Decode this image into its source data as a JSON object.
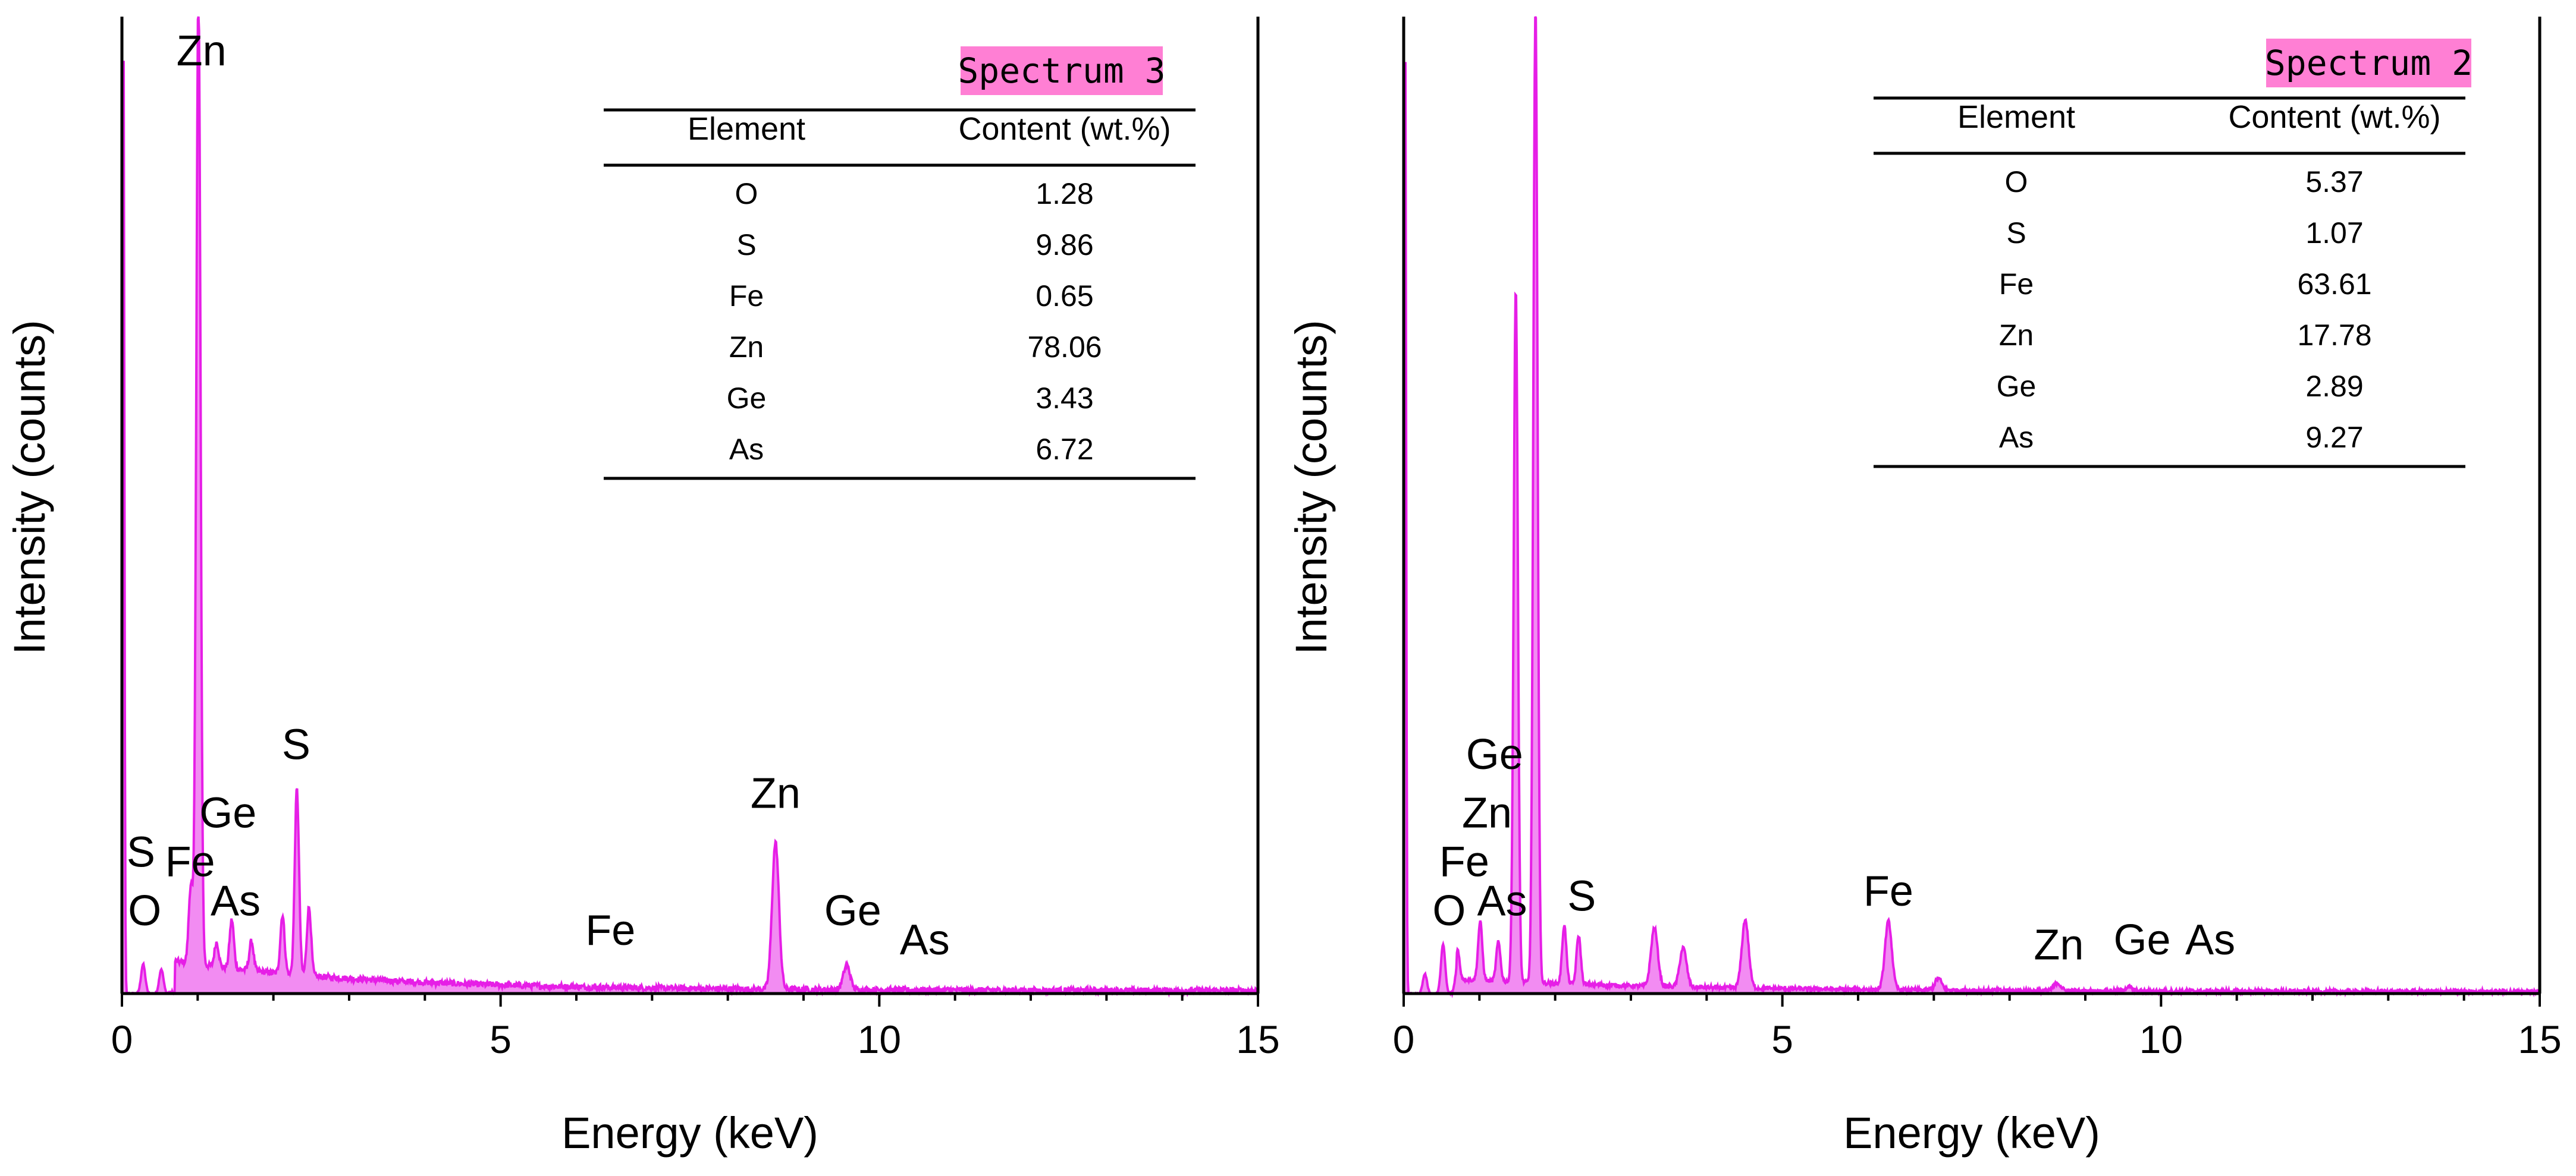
{
  "colors": {
    "spectrum_fill": "#f28cf2",
    "spectrum_stroke": "#e61ee6",
    "title_badge": "#ff7fd4"
  },
  "chart_data": [
    {
      "type": "area",
      "title": "Spectrum 3",
      "xlabel": "Energy (keV)",
      "ylabel": "Intensity (counts)",
      "xlim": [
        0,
        15
      ],
      "x_ticks": [
        "0",
        "5",
        "10",
        "15"
      ],
      "y_scale": "relative (no numeric ticks)",
      "peaks": [
        {
          "energy": 0.02,
          "height": 1.0
        },
        {
          "energy": 0.28,
          "height": 0.03
        },
        {
          "energy": 0.52,
          "height": 0.025
        },
        {
          "energy": 0.91,
          "height": 0.08
        },
        {
          "energy": 1.01,
          "height": 1.0
        },
        {
          "energy": 1.25,
          "height": 0.025
        },
        {
          "energy": 1.45,
          "height": 0.05
        },
        {
          "energy": 1.71,
          "height": 0.03
        },
        {
          "energy": 2.12,
          "height": 0.06
        },
        {
          "energy": 2.31,
          "height": 0.19
        },
        {
          "energy": 2.47,
          "height": 0.07
        },
        {
          "energy": 8.63,
          "height": 0.15
        },
        {
          "energy": 9.57,
          "height": 0.025
        }
      ],
      "peak_labels": [
        {
          "text": "Zn",
          "energy": 1.05,
          "level": 0.95
        },
        {
          "text": "S",
          "energy": 0.25,
          "level": 0.13
        },
        {
          "text": "O",
          "energy": 0.3,
          "level": 0.07
        },
        {
          "text": "Fe",
          "energy": 0.9,
          "level": 0.12
        },
        {
          "text": "Ge",
          "energy": 1.4,
          "level": 0.17
        },
        {
          "text": "As",
          "energy": 1.5,
          "level": 0.08
        },
        {
          "text": "S",
          "energy": 2.3,
          "level": 0.24
        },
        {
          "text": "Fe",
          "energy": 6.45,
          "level": 0.05
        },
        {
          "text": "Zn",
          "energy": 8.63,
          "level": 0.19
        },
        {
          "text": "Ge",
          "energy": 9.65,
          "level": 0.07
        },
        {
          "text": "As",
          "energy": 10.6,
          "level": 0.04
        }
      ],
      "table": {
        "headers": [
          "Element",
          "Content (wt.%)"
        ],
        "rows": [
          [
            "O",
            "1.28"
          ],
          [
            "S",
            "9.86"
          ],
          [
            "Fe",
            "0.65"
          ],
          [
            "Zn",
            "78.06"
          ],
          [
            "Ge",
            "3.43"
          ],
          [
            "As",
            "6.72"
          ]
        ]
      }
    },
    {
      "type": "area",
      "title": "Spectrum 2",
      "xlabel": "Energy (keV)",
      "ylabel": "Intensity (counts)",
      "xlim": [
        0,
        15
      ],
      "x_ticks": [
        "0",
        "5",
        "10",
        "15"
      ],
      "y_scale": "relative (no numeric ticks)",
      "peaks": [
        {
          "energy": 0.02,
          "height": 1.0
        },
        {
          "energy": 0.28,
          "height": 0.02
        },
        {
          "energy": 0.52,
          "height": 0.05
        },
        {
          "energy": 0.71,
          "height": 0.03
        },
        {
          "energy": 1.01,
          "height": 0.06
        },
        {
          "energy": 1.25,
          "height": 0.04
        },
        {
          "energy": 1.48,
          "height": 0.71
        },
        {
          "energy": 1.74,
          "height": 1.0
        },
        {
          "energy": 2.12,
          "height": 0.06
        },
        {
          "energy": 2.31,
          "height": 0.05
        },
        {
          "energy": 3.31,
          "height": 0.06
        },
        {
          "energy": 3.69,
          "height": 0.04
        },
        {
          "energy": 4.51,
          "height": 0.07
        },
        {
          "energy": 6.4,
          "height": 0.07
        },
        {
          "energy": 7.06,
          "height": 0.012
        },
        {
          "energy": 8.63,
          "height": 0.008
        },
        {
          "energy": 9.57,
          "height": 0.004
        }
      ],
      "peak_labels": [
        {
          "text": "Ge",
          "energy": 1.2,
          "level": 0.23
        },
        {
          "text": "Zn",
          "energy": 1.1,
          "level": 0.17
        },
        {
          "text": "Fe",
          "energy": 0.8,
          "level": 0.12
        },
        {
          "text": "O",
          "energy": 0.6,
          "level": 0.07
        },
        {
          "text": "As",
          "energy": 1.3,
          "level": 0.08
        },
        {
          "text": "S",
          "energy": 2.35,
          "level": 0.085
        },
        {
          "text": "Fe",
          "energy": 6.4,
          "level": 0.09
        },
        {
          "text": "Zn",
          "energy": 8.65,
          "level": 0.035
        },
        {
          "text": "Ge",
          "energy": 9.75,
          "level": 0.04
        },
        {
          "text": "As",
          "energy": 10.65,
          "level": 0.04
        }
      ],
      "table": {
        "headers": [
          "Element",
          "Content (wt.%)"
        ],
        "rows": [
          [
            "O",
            "5.37"
          ],
          [
            "S",
            "1.07"
          ],
          [
            "Fe",
            "63.61"
          ],
          [
            "Zn",
            "17.78"
          ],
          [
            "Ge",
            "2.89"
          ],
          [
            "As",
            "9.27"
          ]
        ]
      }
    }
  ]
}
